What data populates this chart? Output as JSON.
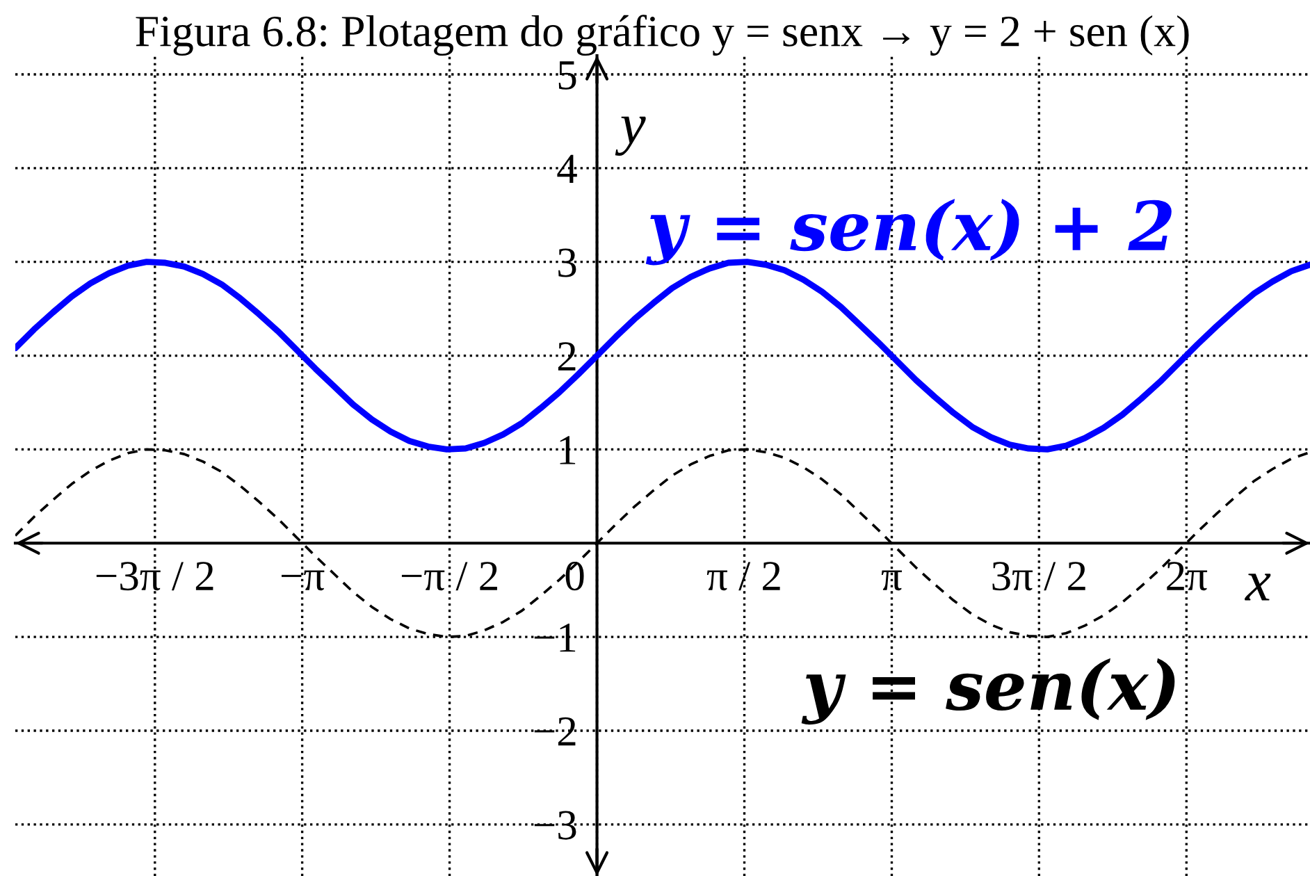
{
  "chart_data": {
    "type": "line",
    "title": "Figura 6.8: Plotagem do gráfico y = senx → y = 2 + sen (x)",
    "xlabel": "x",
    "ylabel": "y",
    "x": [
      -6.2,
      -6.0,
      -5.8,
      -5.6,
      -5.4,
      -5.2,
      -5.0,
      -4.8,
      -4.6,
      -4.4,
      -4.2,
      -4.0,
      -3.8,
      -3.6,
      -3.4,
      -3.2,
      -3.0,
      -2.8,
      -2.6,
      -2.4,
      -2.2,
      -2.0,
      -1.8,
      -1.6,
      -1.4,
      -1.2,
      -1.0,
      -0.8,
      -0.6,
      -0.4,
      -0.2,
      0.0,
      0.2,
      0.4,
      0.6,
      0.8,
      1.0,
      1.2,
      1.4,
      1.6,
      1.8,
      2.0,
      2.2,
      2.4,
      2.6,
      2.8,
      3.0,
      3.2,
      3.4,
      3.6,
      3.8,
      4.0,
      4.2,
      4.4,
      4.6,
      4.8,
      5.0,
      5.2,
      5.4,
      5.6,
      5.8,
      6.0,
      6.2,
      6.4,
      6.6,
      6.8,
      7.0,
      7.2,
      7.4,
      7.6
    ],
    "series": [
      {
        "name": "y = sen(x) + 2",
        "color": "#0000ff",
        "line_style": "solid",
        "values": [
          2.08,
          2.28,
          2.46,
          2.63,
          2.77,
          2.88,
          2.96,
          3.0,
          2.99,
          2.95,
          2.87,
          2.76,
          2.61,
          2.44,
          2.26,
          2.06,
          1.86,
          1.67,
          1.48,
          1.32,
          1.19,
          1.09,
          1.03,
          1.0,
          1.01,
          1.07,
          1.16,
          1.28,
          1.44,
          1.61,
          1.8,
          2.0,
          2.2,
          2.39,
          2.56,
          2.72,
          2.84,
          2.93,
          2.99,
          3.0,
          2.97,
          2.91,
          2.81,
          2.68,
          2.52,
          2.33,
          2.14,
          1.94,
          1.74,
          1.56,
          1.39,
          1.24,
          1.13,
          1.05,
          1.01,
          1.0,
          1.04,
          1.12,
          1.23,
          1.37,
          1.54,
          1.72,
          1.92,
          2.12,
          2.31,
          2.49,
          2.66,
          2.79,
          2.9,
          2.97
        ]
      },
      {
        "name": "y = sen(x)",
        "color": "#000000",
        "line_style": "dashed",
        "values": [
          0.08,
          0.28,
          0.46,
          0.63,
          0.77,
          0.88,
          0.96,
          1.0,
          0.99,
          0.95,
          0.87,
          0.76,
          0.61,
          0.44,
          0.26,
          0.06,
          -0.14,
          -0.33,
          -0.52,
          -0.68,
          -0.81,
          -0.91,
          -0.97,
          -1.0,
          -0.99,
          -0.93,
          -0.84,
          -0.72,
          -0.56,
          -0.39,
          -0.2,
          0.0,
          0.2,
          0.39,
          0.56,
          0.72,
          0.84,
          0.93,
          0.99,
          1.0,
          0.97,
          0.91,
          0.81,
          0.68,
          0.52,
          0.33,
          0.14,
          -0.06,
          -0.26,
          -0.44,
          -0.61,
          -0.76,
          -0.87,
          -0.95,
          -0.99,
          -1.0,
          -0.96,
          -0.88,
          -0.77,
          -0.63,
          -0.46,
          -0.28,
          -0.08,
          0.12,
          0.31,
          0.49,
          0.66,
          0.79,
          0.9,
          0.97
        ]
      }
    ],
    "xlim": [
      -6.2,
      7.6
    ],
    "ylim": [
      -3.55,
      5.2
    ],
    "xticks": [
      {
        "value": -4.712,
        "label": "−3π / 2"
      },
      {
        "value": -3.142,
        "label": "−π"
      },
      {
        "value": -1.571,
        "label": "−π / 2"
      },
      0,
      {
        "value": 1.571,
        "label": "π / 2"
      },
      {
        "value": 3.142,
        "label": "π"
      },
      {
        "value": 4.712,
        "label": "3π / 2"
      },
      {
        "value": 6.283,
        "label": "2π"
      }
    ],
    "yticks": [
      {
        "value": -3,
        "label": "−3"
      },
      {
        "value": -2,
        "label": "−2"
      },
      {
        "value": -1,
        "label": "−1"
      },
      1,
      2,
      3,
      4,
      5
    ],
    "grid": true
  }
}
